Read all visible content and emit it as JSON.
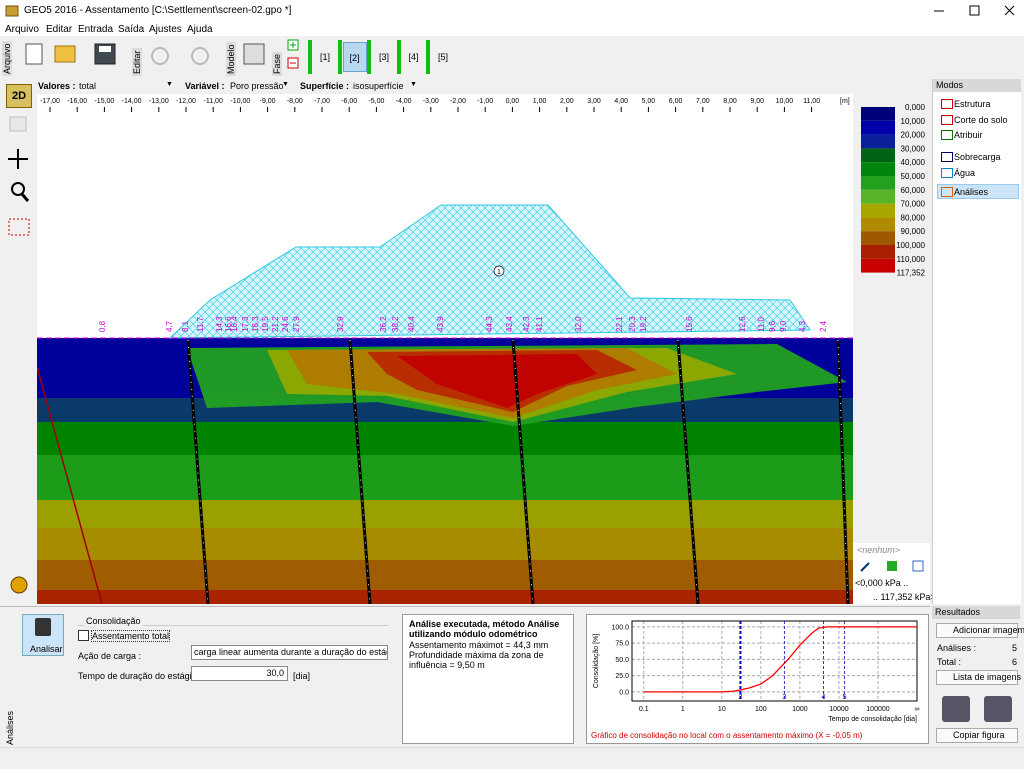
{
  "window": {
    "title": "GEO5 2016 - Assentamento [C:\\Settlement\\screen-02.gpo *]"
  },
  "menu": [
    "Arquivo",
    "Editar",
    "Entrada",
    "Saída",
    "Ajustes",
    "Ajuda"
  ],
  "toolbar": {
    "groups": [
      "Arquivo",
      "Editar",
      "Modelo",
      "Fase"
    ],
    "stages": [
      "[1]",
      "[2]",
      "[3]",
      "[4]",
      "[5]"
    ],
    "active_stage": 1
  },
  "view_bar": {
    "view_2d": "2D",
    "values_label": "Valores :",
    "values": "total",
    "variable_label": "Variável :",
    "variable": "Poro pressão",
    "surface_label": "Superfície :",
    "surface": "isosuperfície"
  },
  "ruler": {
    "ticks": [
      "-17,00",
      "-16,00",
      "-15,00",
      "-14,00",
      "-13,00",
      "-12,00",
      "-11,00",
      "-10,00",
      "-9,00",
      "-8,00",
      "-7,00",
      "-6,00",
      "-5,00",
      "-4,00",
      "-3,00",
      "-2,00",
      "-1,00",
      "0,00",
      "1,00",
      "2,00",
      "3,00",
      "4,00",
      "5,00",
      "6,00",
      "7,00",
      "8,00",
      "9,00",
      "10,00",
      "11,00"
    ],
    "unit": "[m]"
  },
  "profile": {
    "settlements": [
      "0,8",
      "4,7",
      "8,1",
      "11,7",
      "14,3",
      "16,6",
      "16,4",
      "17,3",
      "18,3",
      "19,5",
      "21,2",
      "24,6",
      "27,9",
      "32,9",
      "36,2",
      "38,2",
      "40,4",
      "43,9",
      "44,3",
      "43,4",
      "42,3",
      "41,1",
      "32,0",
      "22,1",
      "20,3",
      "19,2",
      "15,6",
      "12,6",
      "11,0",
      "9,6",
      "9,0",
      "4,3",
      "2,4"
    ],
    "region": "1"
  },
  "legend": {
    "ticks": [
      "0,000",
      "10,000",
      "20,000",
      "30,000",
      "40,000",
      "50,000",
      "60,000",
      "70,000",
      "80,000",
      "90,000",
      "100,000",
      "110,000",
      "117,352"
    ],
    "colors": [
      "#00007a",
      "#0000a8",
      "#0a1f9a",
      "#006414",
      "#00860a",
      "#22a01e",
      "#5ab42a",
      "#a6a800",
      "#b08a00",
      "#a05800",
      "#a82000",
      "#c80000"
    ],
    "selection": "<nenhum>",
    "min": "<0,000 kPa ..",
    "max": ".. 117,352 kPa>"
  },
  "modes": {
    "title": "Modos",
    "items": [
      "Estrutura",
      "Corte do solo",
      "Atribuir",
      "Sobrecarga",
      "Água",
      "Análises"
    ],
    "active": 5
  },
  "results": {
    "title": "Resultados",
    "add_image": "Adicionar imagem",
    "analyses_label": "Análises :",
    "analyses": "5",
    "total_label": "Total :",
    "total": "6",
    "image_list": "Lista de imagens",
    "copy": "Copiar figura"
  },
  "bottom": {
    "tab": "Análises",
    "analyze": "Analisar",
    "group": "Consolidação",
    "total_settlement": "Assentamento total",
    "load_action_label": "Ação de carga :",
    "load_action": "carga linear aumenta durante a duração do estágio",
    "duration_label": "Tempo de duração do estágio :",
    "duration": "30,0",
    "unit": "[dia]"
  },
  "message": {
    "heading": "Análise executada, método Análise utilizando módulo odométrico",
    "lines": [
      "Assentamento máximot = 44,3 mm",
      "Profundidade máxima da zona de influência = 9,50 m"
    ]
  },
  "consolidation_chart": {
    "type": "line",
    "y_label": "Consolidação [%]",
    "x_label": "Tempo de consolidação [dia]",
    "caption": "Gráfico de consolidação no local com o assentamento máximo (X = -0,05 m)",
    "log_x": true,
    "grid": true,
    "color": "#ff0000",
    "x": [
      0.1,
      1,
      10,
      20,
      30,
      50,
      100,
      200,
      500,
      1000,
      2000,
      3000,
      5000,
      100000,
      1000000
    ],
    "values": [
      0,
      0,
      0,
      1,
      3,
      6,
      12,
      25,
      50,
      72,
      90,
      98,
      100,
      100,
      100
    ],
    "xlim": [
      0.05,
      1000000
    ],
    "xticks": [
      0.1,
      1,
      10,
      100,
      1000,
      10000,
      100000,
      {
        "value": 1000000,
        "label": "∞"
      }
    ],
    "ylim": [
      -14,
      109
    ],
    "yticks": [
      {
        "value": 0,
        "label": "0.0"
      },
      {
        "value": 25,
        "label": "25.0"
      },
      {
        "value": 50,
        "label": "50.0"
      },
      {
        "value": 75,
        "label": "75.0"
      },
      {
        "value": 100,
        "label": "100.0"
      }
    ],
    "markers": [
      {
        "x": 30,
        "label": "2"
      },
      {
        "x": 400,
        "label": "3"
      },
      {
        "x": 4000,
        "label": "4"
      },
      {
        "x": 14000,
        "label": "5"
      }
    ]
  }
}
